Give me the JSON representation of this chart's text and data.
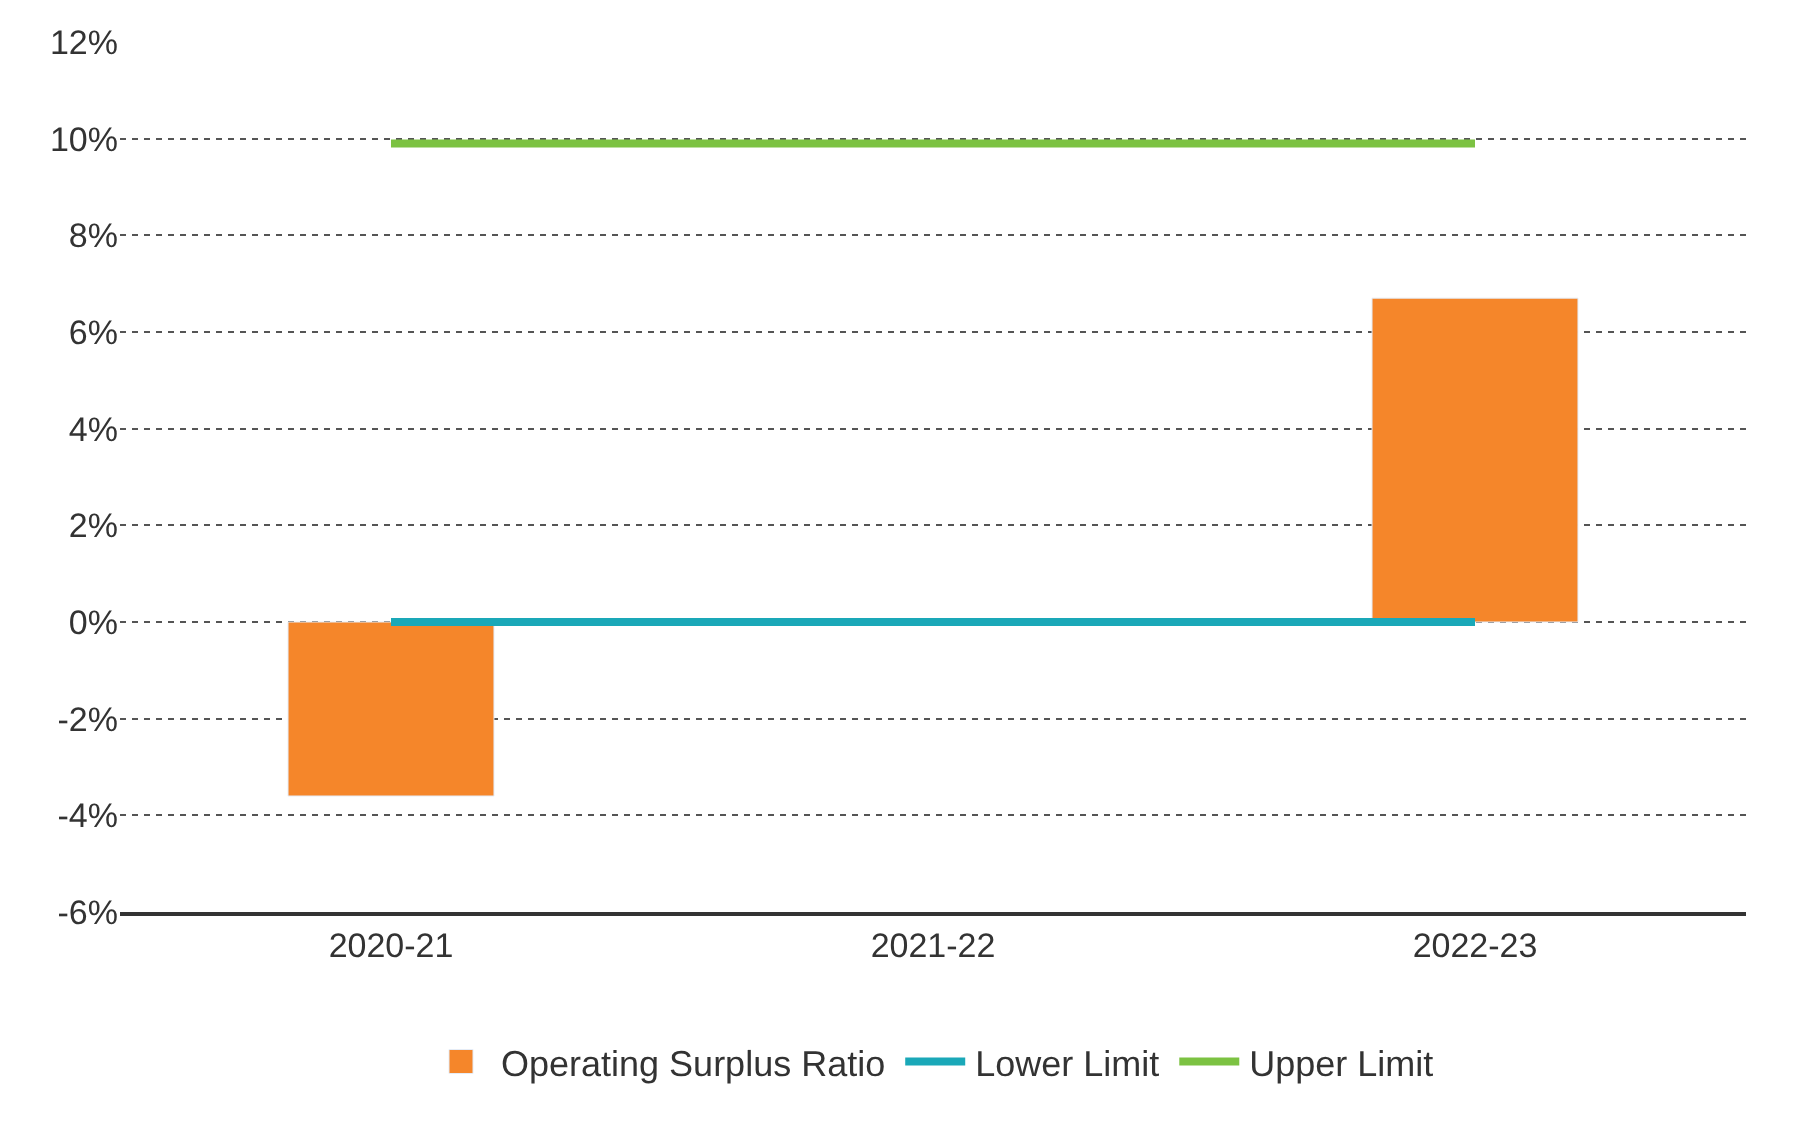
{
  "chart_data": {
    "type": "bar",
    "categories": [
      "2020-21",
      "2021-22",
      "2022-23"
    ],
    "series": [
      {
        "name": "Operating Surplus Ratio",
        "color": "#f5862a",
        "values": [
          -3.6,
          null,
          6.7
        ]
      },
      {
        "name": "Lower Limit",
        "type": "line",
        "color": "#1aa8b8",
        "values": [
          0,
          0,
          0
        ]
      },
      {
        "name": "Upper Limit",
        "type": "line",
        "color": "#7cc242",
        "values": [
          9.9,
          9.9,
          9.9
        ]
      }
    ],
    "ylim": [
      -6,
      12
    ],
    "yticks": [
      {
        "value": -6,
        "label": "-6%"
      },
      {
        "value": -4,
        "label": "-4%"
      },
      {
        "value": -2,
        "label": "-2%"
      },
      {
        "value": 0,
        "label": "0%"
      },
      {
        "value": 2,
        "label": "2%"
      },
      {
        "value": 4,
        "label": "4%"
      },
      {
        "value": 6,
        "label": "6%"
      },
      {
        "value": 8,
        "label": "8%"
      },
      {
        "value": 10,
        "label": "10%"
      },
      {
        "value": 12,
        "label": "12%"
      }
    ],
    "grid": "y",
    "legend": "bottom",
    "marker": "none",
    "line_style": "solid"
  }
}
